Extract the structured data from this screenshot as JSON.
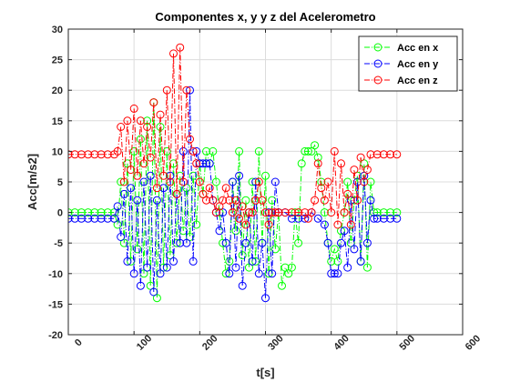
{
  "chart_data": {
    "type": "line",
    "title": "Componentes x, y y z del Acelerometro",
    "xlabel": "t[s]",
    "ylabel": "Acc[m/s2]",
    "xlim": [
      0,
      600
    ],
    "ylim": [
      -20,
      30
    ],
    "xticks": [
      0,
      100,
      200,
      300,
      400,
      500,
      600
    ],
    "yticks": [
      -20,
      -15,
      -10,
      -5,
      0,
      5,
      10,
      15,
      20,
      25,
      30
    ],
    "grid": true,
    "legend_position": "top-right",
    "marker": "circle",
    "line_style": "dashdot",
    "series": [
      {
        "name": "Acc en x",
        "color": "#00ff00",
        "points": [
          [
            0,
            0
          ],
          [
            10,
            0
          ],
          [
            20,
            0
          ],
          [
            30,
            0
          ],
          [
            40,
            0
          ],
          [
            50,
            0
          ],
          [
            60,
            0
          ],
          [
            70,
            0
          ],
          [
            75,
            -2
          ],
          [
            80,
            5
          ],
          [
            85,
            -5
          ],
          [
            90,
            8
          ],
          [
            95,
            -8
          ],
          [
            100,
            10
          ],
          [
            105,
            -6
          ],
          [
            110,
            12
          ],
          [
            115,
            -10
          ],
          [
            120,
            15
          ],
          [
            125,
            -12
          ],
          [
            130,
            18
          ],
          [
            135,
            -14
          ],
          [
            140,
            14
          ],
          [
            145,
            -9
          ],
          [
            150,
            10
          ],
          [
            155,
            -7
          ],
          [
            160,
            8
          ],
          [
            165,
            -5
          ],
          [
            170,
            6
          ],
          [
            175,
            -3
          ],
          [
            180,
            4
          ],
          [
            185,
            -4
          ],
          [
            190,
            6
          ],
          [
            195,
            -2
          ],
          [
            200,
            8
          ],
          [
            205,
            3
          ],
          [
            210,
            10
          ],
          [
            215,
            8
          ],
          [
            220,
            10
          ],
          [
            225,
            5
          ],
          [
            230,
            0
          ],
          [
            235,
            -5
          ],
          [
            240,
            -10
          ],
          [
            245,
            -8
          ],
          [
            250,
            5
          ],
          [
            255,
            -3
          ],
          [
            260,
            10
          ],
          [
            265,
            -7
          ],
          [
            270,
            2
          ],
          [
            275,
            -9
          ],
          [
            280,
            5
          ],
          [
            285,
            -8
          ],
          [
            290,
            10
          ],
          [
            295,
            -5
          ],
          [
            300,
            6
          ],
          [
            305,
            -10
          ],
          [
            310,
            2
          ],
          [
            315,
            -6
          ],
          [
            320,
            0
          ],
          [
            325,
            -12
          ],
          [
            330,
            -9
          ],
          [
            335,
            -10
          ],
          [
            340,
            -9
          ],
          [
            345,
            0
          ],
          [
            350,
            -5
          ],
          [
            355,
            8
          ],
          [
            360,
            10
          ],
          [
            365,
            10
          ],
          [
            370,
            10
          ],
          [
            375,
            11
          ],
          [
            380,
            9
          ],
          [
            385,
            5
          ],
          [
            390,
            0
          ],
          [
            395,
            -5
          ],
          [
            400,
            -8
          ],
          [
            405,
            -6
          ],
          [
            410,
            -8
          ],
          [
            415,
            -3
          ],
          [
            420,
            0
          ],
          [
            425,
            5
          ],
          [
            430,
            -5
          ],
          [
            435,
            2
          ],
          [
            440,
            6
          ],
          [
            445,
            -8
          ],
          [
            450,
            8
          ],
          [
            455,
            -9
          ],
          [
            460,
            5
          ],
          [
            465,
            0
          ],
          [
            470,
            0
          ],
          [
            480,
            0
          ],
          [
            490,
            0
          ],
          [
            500,
            0
          ]
        ]
      },
      {
        "name": "Acc en y",
        "color": "#0000ff",
        "points": [
          [
            0,
            -1
          ],
          [
            10,
            -1
          ],
          [
            20,
            -1
          ],
          [
            30,
            -1
          ],
          [
            40,
            -1
          ],
          [
            50,
            -1
          ],
          [
            60,
            -1
          ],
          [
            70,
            -1
          ],
          [
            75,
            1
          ],
          [
            80,
            -4
          ],
          [
            85,
            3
          ],
          [
            90,
            -8
          ],
          [
            95,
            4
          ],
          [
            100,
            -10
          ],
          [
            105,
            2
          ],
          [
            110,
            -12
          ],
          [
            115,
            5
          ],
          [
            120,
            -9
          ],
          [
            125,
            6
          ],
          [
            130,
            -13
          ],
          [
            135,
            2
          ],
          [
            140,
            -10
          ],
          [
            145,
            4
          ],
          [
            150,
            -9
          ],
          [
            155,
            6
          ],
          [
            160,
            -8
          ],
          [
            165,
            3
          ],
          [
            170,
            -5
          ],
          [
            175,
            10
          ],
          [
            180,
            -5
          ],
          [
            185,
            20
          ],
          [
            190,
            -8
          ],
          [
            195,
            10
          ],
          [
            200,
            8
          ],
          [
            205,
            8
          ],
          [
            210,
            8
          ],
          [
            215,
            8
          ],
          [
            220,
            2
          ],
          [
            225,
            0
          ],
          [
            230,
            -3
          ],
          [
            235,
            0
          ],
          [
            240,
            -5
          ],
          [
            245,
            -10
          ],
          [
            250,
            5
          ],
          [
            255,
            -9
          ],
          [
            260,
            6
          ],
          [
            265,
            -12
          ],
          [
            270,
            -5
          ],
          [
            275,
            0
          ],
          [
            280,
            -8
          ],
          [
            285,
            5
          ],
          [
            290,
            -10
          ],
          [
            295,
            -5
          ],
          [
            300,
            -14
          ],
          [
            305,
            0
          ],
          [
            310,
            -10
          ],
          [
            315,
            5
          ],
          [
            320,
            0
          ],
          [
            330,
            0
          ],
          [
            340,
            -1
          ],
          [
            350,
            -1
          ],
          [
            360,
            -1
          ],
          [
            370,
            0
          ],
          [
            380,
            -1
          ],
          [
            390,
            -2
          ],
          [
            395,
            -5
          ],
          [
            400,
            -10
          ],
          [
            405,
            -10
          ],
          [
            410,
            -10
          ],
          [
            415,
            -5
          ],
          [
            420,
            -3
          ],
          [
            425,
            -9
          ],
          [
            430,
            2
          ],
          [
            435,
            -6
          ],
          [
            440,
            5
          ],
          [
            445,
            -8
          ],
          [
            450,
            6
          ],
          [
            455,
            -5
          ],
          [
            460,
            2
          ],
          [
            465,
            -1
          ],
          [
            470,
            -1
          ],
          [
            480,
            -1
          ],
          [
            490,
            -1
          ],
          [
            500,
            -1
          ]
        ]
      },
      {
        "name": "Acc en z",
        "color": "#ff0000",
        "points": [
          [
            0,
            9.5
          ],
          [
            10,
            9.5
          ],
          [
            20,
            9.5
          ],
          [
            30,
            9.5
          ],
          [
            40,
            9.5
          ],
          [
            50,
            9.5
          ],
          [
            60,
            9.5
          ],
          [
            70,
            9.5
          ],
          [
            75,
            10
          ],
          [
            80,
            14
          ],
          [
            85,
            5
          ],
          [
            90,
            15
          ],
          [
            95,
            7
          ],
          [
            100,
            17
          ],
          [
            105,
            6
          ],
          [
            110,
            15
          ],
          [
            115,
            8
          ],
          [
            120,
            14
          ],
          [
            125,
            9
          ],
          [
            130,
            18
          ],
          [
            135,
            4
          ],
          [
            140,
            16
          ],
          [
            145,
            6
          ],
          [
            150,
            20
          ],
          [
            155,
            5
          ],
          [
            160,
            26
          ],
          [
            165,
            3
          ],
          [
            170,
            27
          ],
          [
            175,
            5
          ],
          [
            180,
            20
          ],
          [
            185,
            12
          ],
          [
            190,
            10
          ],
          [
            195,
            8
          ],
          [
            200,
            5
          ],
          [
            205,
            3
          ],
          [
            210,
            2
          ],
          [
            215,
            4
          ],
          [
            220,
            2
          ],
          [
            225,
            0
          ],
          [
            230,
            1
          ],
          [
            235,
            2
          ],
          [
            240,
            4
          ],
          [
            245,
            2
          ],
          [
            250,
            0
          ],
          [
            255,
            2
          ],
          [
            260,
            -1
          ],
          [
            265,
            1
          ],
          [
            270,
            -2
          ],
          [
            275,
            0
          ],
          [
            280,
            0
          ],
          [
            285,
            2
          ],
          [
            290,
            5
          ],
          [
            295,
            2
          ],
          [
            300,
            0
          ],
          [
            305,
            -2
          ],
          [
            310,
            0
          ],
          [
            315,
            0
          ],
          [
            320,
            0
          ],
          [
            330,
            0
          ],
          [
            340,
            0
          ],
          [
            350,
            0
          ],
          [
            360,
            0
          ],
          [
            365,
            -1
          ],
          [
            370,
            0
          ],
          [
            375,
            2
          ],
          [
            380,
            8
          ],
          [
            385,
            4
          ],
          [
            390,
            2
          ],
          [
            395,
            5
          ],
          [
            400,
            0
          ],
          [
            405,
            10
          ],
          [
            410,
            -2
          ],
          [
            415,
            8
          ],
          [
            420,
            0
          ],
          [
            425,
            3
          ],
          [
            430,
            -2
          ],
          [
            435,
            7
          ],
          [
            440,
            2
          ],
          [
            445,
            9
          ],
          [
            450,
            5
          ],
          [
            455,
            7
          ],
          [
            460,
            9.5
          ],
          [
            470,
            9.5
          ],
          [
            480,
            9.5
          ],
          [
            490,
            9.5
          ],
          [
            500,
            9.5
          ]
        ]
      }
    ]
  }
}
